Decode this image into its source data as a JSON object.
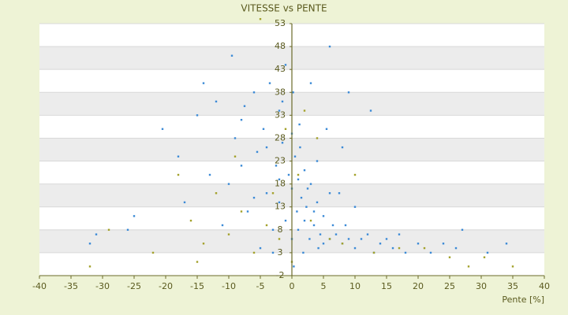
{
  "chart_data": {
    "type": "scatter",
    "title": "VITESSE vs PENTE",
    "x_label": "Pente [%]",
    "xlim": [
      -40,
      40
    ],
    "xticks": [
      -40,
      -35,
      -30,
      -25,
      -20,
      -15,
      -10,
      -5,
      0,
      5,
      10,
      15,
      20,
      25,
      30,
      35,
      40
    ],
    "ylim": [
      -2,
      53
    ],
    "yticks": [
      -2,
      3,
      8,
      13,
      18,
      23,
      28,
      33,
      38,
      43,
      48,
      53
    ],
    "grid": true,
    "series": [
      {
        "color": "#3b8ad6",
        "x": [
          -32,
          -31,
          -25,
          -26,
          -20.5,
          -17,
          -15,
          -14,
          -12,
          -10,
          -9.5,
          -9,
          -8,
          -7.5,
          -7,
          -6,
          -5.5,
          -5,
          -4.5,
          -4,
          -3.5,
          -3,
          -2.5,
          -2,
          -2,
          -1.5,
          -1,
          -1,
          -0.5,
          0,
          0,
          0,
          0.3,
          0.5,
          0.8,
          1,
          1,
          1.3,
          1.5,
          2,
          2,
          2.3,
          2.8,
          3,
          3,
          3.5,
          4,
          4,
          4.5,
          5,
          5,
          5.5,
          6,
          6,
          6.5,
          7,
          7.5,
          8,
          8,
          9,
          9,
          10,
          10,
          11,
          12,
          12.5,
          13,
          14,
          15,
          16,
          17,
          18,
          20,
          22,
          24,
          26,
          27,
          31,
          34,
          -18,
          -13,
          -11,
          -8,
          -6,
          -3,
          -1.5,
          0.2,
          1.2,
          2.5,
          3.5,
          4.2,
          -4,
          6,
          8.5,
          -2,
          1.8
        ],
        "values": [
          5,
          7,
          11,
          8,
          30,
          14,
          33,
          40,
          36,
          18,
          46,
          28,
          22,
          35,
          12,
          38,
          25,
          4,
          30,
          16,
          40,
          8,
          22,
          34,
          14,
          27,
          44,
          10,
          20,
          6,
          17,
          29,
          0,
          24,
          12,
          19,
          8,
          26,
          15,
          10,
          21,
          13,
          6,
          18,
          40,
          9,
          14,
          23,
          7,
          11,
          5,
          30,
          48,
          6,
          9,
          7,
          16,
          5,
          26,
          6,
          38,
          4,
          13,
          6,
          7,
          34,
          3,
          5,
          6,
          4,
          7,
          3,
          5,
          3,
          5,
          4,
          8,
          3,
          5,
          24,
          20,
          9,
          32,
          15,
          3,
          36,
          38,
          31,
          17,
          12,
          4,
          26,
          16,
          9,
          19,
          3
        ]
      },
      {
        "color": "#a3a12a",
        "x": [
          -32,
          -29,
          -22,
          -18,
          -16,
          -15,
          -14,
          -12,
          -10,
          -9,
          -8,
          -6,
          -5,
          -4,
          -3,
          -2,
          -1,
          0,
          1,
          2,
          3,
          4,
          6,
          8,
          10,
          13,
          17,
          21,
          25,
          28,
          35,
          30.5
        ],
        "values": [
          0,
          8,
          3,
          20,
          10,
          1,
          5,
          16,
          7,
          24,
          12,
          3,
          54,
          9,
          16,
          6,
          30,
          1,
          20,
          34,
          10,
          28,
          6,
          5,
          20,
          3,
          4,
          4,
          2,
          0,
          0,
          2
        ]
      }
    ]
  }
}
